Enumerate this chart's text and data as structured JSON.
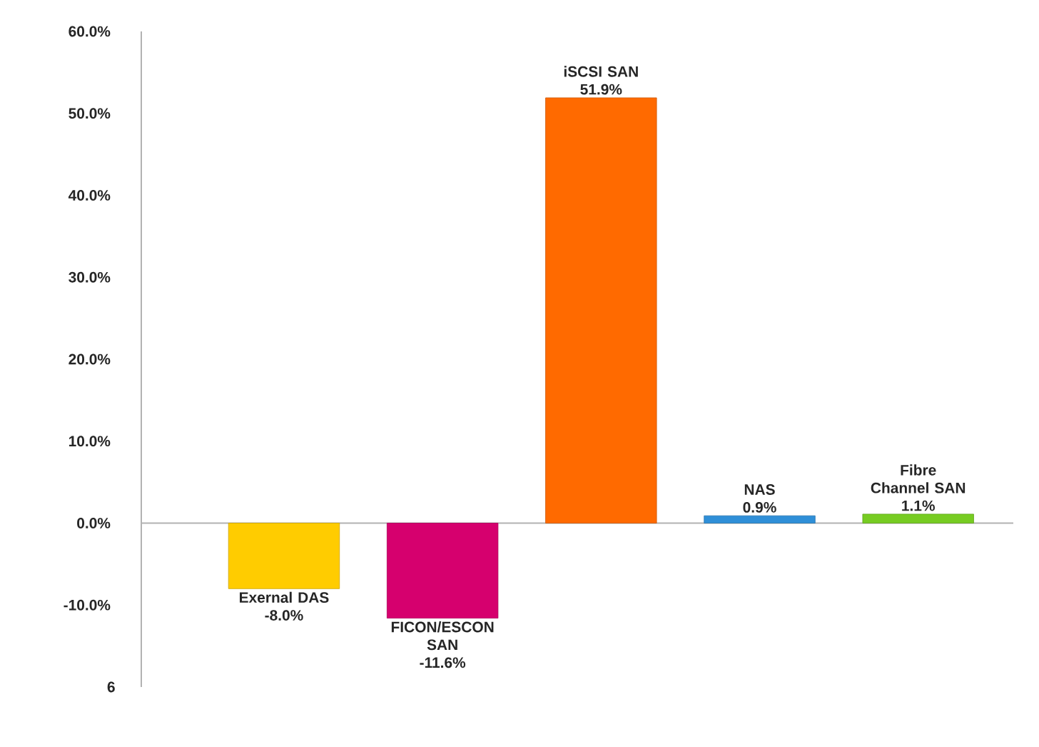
{
  "chart_data": {
    "type": "bar",
    "categories": [
      "Exernal DAS",
      "FICON/ESCON SAN",
      "iSCSI SAN",
      "NAS",
      "Fibre Channel SAN"
    ],
    "values": [
      -8.0,
      -11.6,
      51.9,
      0.9,
      1.1
    ],
    "colors": [
      "#ffcc00",
      "#d6006e",
      "#ff6a00",
      "#2f8fd8",
      "#77cc22"
    ],
    "value_labels": [
      "-8.0%",
      "-11.6%",
      "51.9%",
      "0.9%",
      "1.1%"
    ],
    "ylim": [
      -20,
      60
    ],
    "annotations": [
      "6"
    ],
    "yticks": [
      {
        "value": -10,
        "label": "-10.0%"
      },
      {
        "value": 0,
        "label": "0.0%"
      },
      {
        "value": 10,
        "label": "10.0%"
      },
      {
        "value": 20,
        "label": "20.0%"
      },
      {
        "value": 30,
        "label": "30.0%"
      },
      {
        "value": 40,
        "label": "40.0%"
      },
      {
        "value": 50,
        "label": "50.0%"
      },
      {
        "value": 60,
        "label": "60.0%"
      }
    ],
    "tick_labels": "y"
  }
}
